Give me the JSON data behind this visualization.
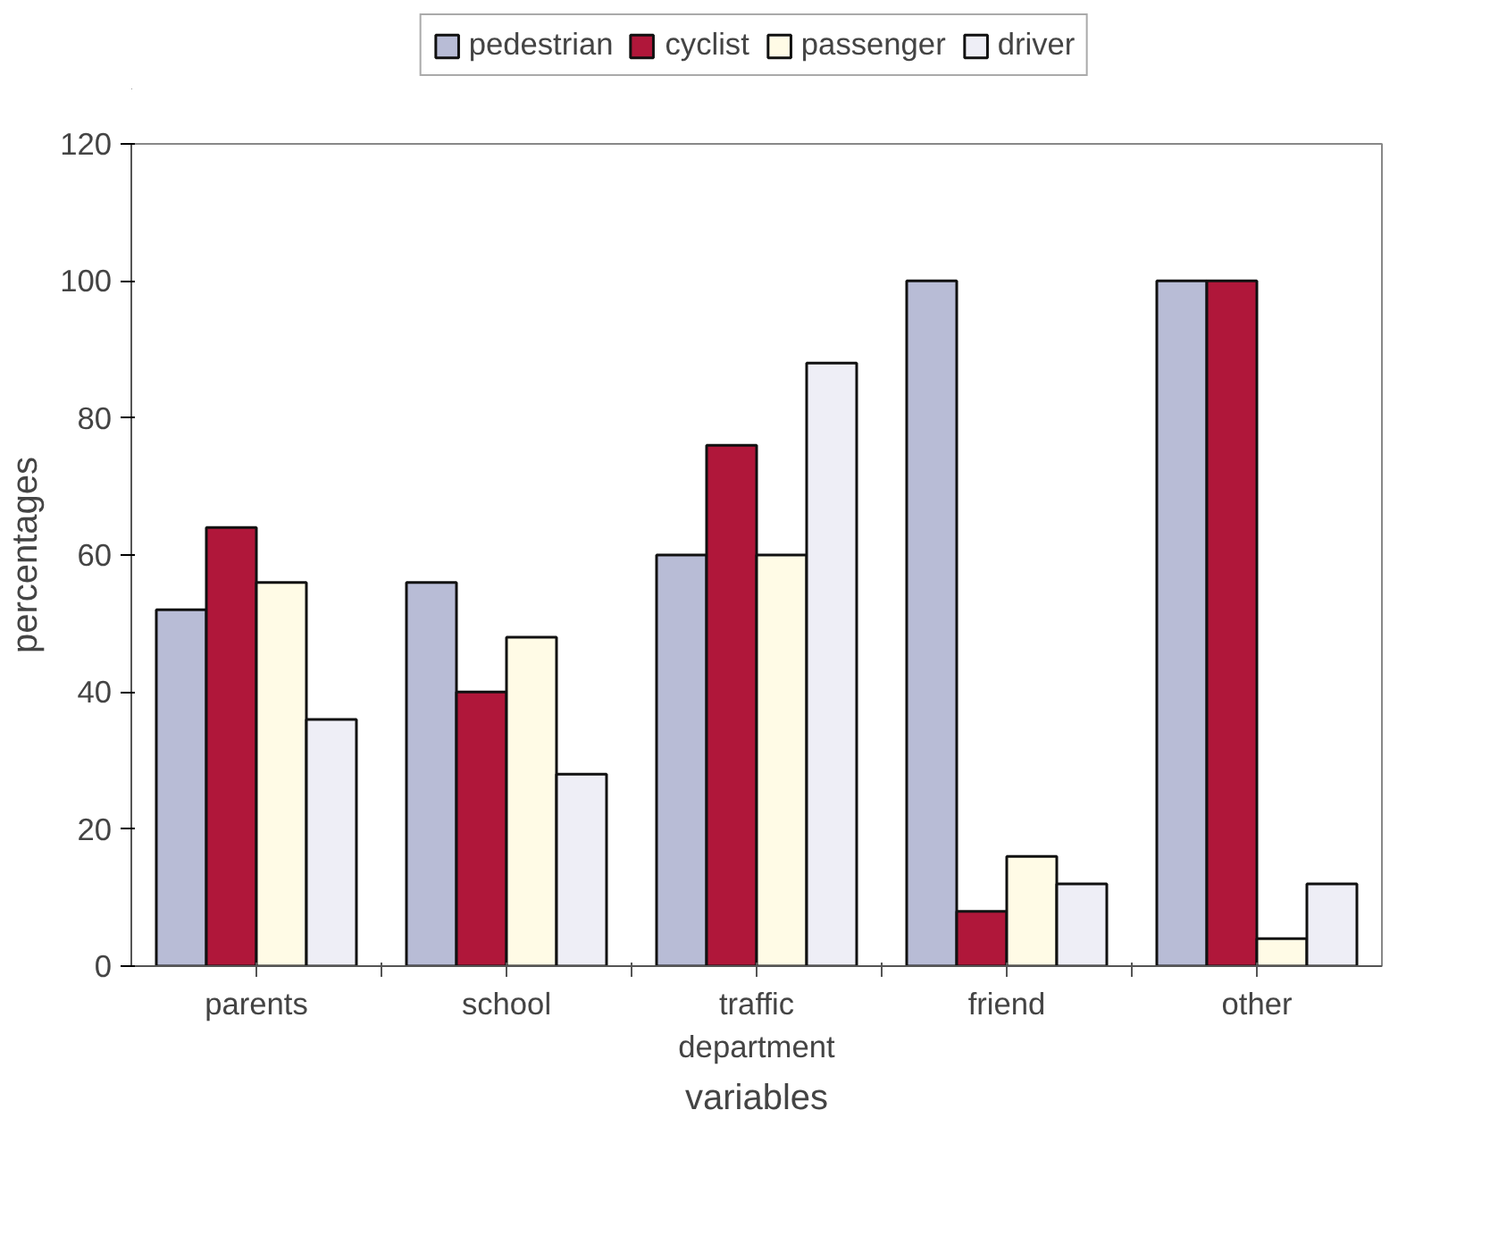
{
  "chart_data": {
    "type": "bar",
    "xlabel": "variables",
    "ylabel": "percentages",
    "categories": [
      "parents",
      "school",
      "traffic department",
      "friend",
      "other"
    ],
    "series": [
      {
        "name": "pedestrian",
        "color": "#b8bcd6",
        "values": [
          52,
          56,
          60,
          100,
          100
        ]
      },
      {
        "name": "cyclist",
        "color": "#b0173a",
        "values": [
          64,
          40,
          76,
          8,
          100
        ]
      },
      {
        "name": "passenger",
        "color": "#fffbe6",
        "values": [
          56,
          48,
          60,
          16,
          4
        ]
      },
      {
        "name": "driver",
        "color": "#eeeef6",
        "values": [
          36,
          28,
          88,
          12,
          12
        ]
      }
    ],
    "ylim": [
      0,
      120
    ],
    "yticks": [
      0,
      20,
      40,
      60,
      80,
      100,
      120
    ],
    "grid": false,
    "legend": "top"
  }
}
